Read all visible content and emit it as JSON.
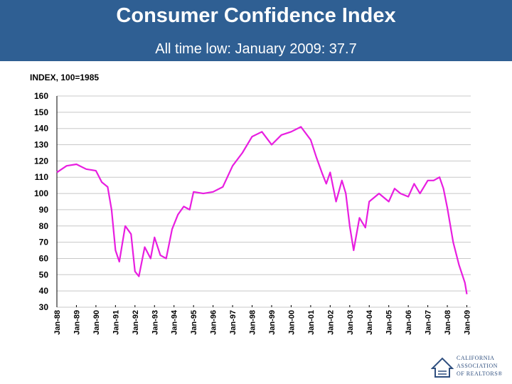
{
  "header": {
    "title": "Consumer Confidence Index",
    "subtitle": "All time low: January 2009: 37.7"
  },
  "colors": {
    "header_bg": "#2f5f93",
    "series_line": "#e81ee0",
    "gridline": "#c8c8c8"
  },
  "logo": {
    "lines": [
      "CALIFORNIA",
      "ASSOCIATION",
      "OF REALTORS®"
    ],
    "icon": "realtors-logo-icon"
  },
  "chart_data": {
    "type": "line",
    "title": "Consumer Confidence Index",
    "subtitle": "All time low: January 2009: 37.7",
    "ylabel": "INDEX, 100=1985",
    "xlabel": "",
    "ylim": [
      30,
      160
    ],
    "yticks": [
      30,
      40,
      50,
      60,
      70,
      80,
      90,
      100,
      110,
      120,
      130,
      140,
      150,
      160
    ],
    "xticks": [
      "Jan-88",
      "Jan-89",
      "Jan-90",
      "Jan-91",
      "Jan-92",
      "Jan-93",
      "Jan-94",
      "Jan-95",
      "Jan-96",
      "Jan-97",
      "Jan-98",
      "Jan-99",
      "Jan-00",
      "Jan-01",
      "Jan-02",
      "Jan-03",
      "Jan-04",
      "Jan-05",
      "Jan-06",
      "Jan-07",
      "Jan-08",
      "Jan-09"
    ],
    "grid": true,
    "legend": "none",
    "series": [
      {
        "x": [
          1988.0,
          1988.5,
          1989.0,
          1989.5,
          1990.0,
          1990.3,
          1990.6,
          1990.8,
          1991.0,
          1991.2,
          1991.5,
          1991.8,
          1992.0,
          1992.2,
          1992.5,
          1992.8,
          1993.0,
          1993.3,
          1993.6,
          1993.9,
          1994.2,
          1994.5,
          1994.8,
          1995.0,
          1995.5,
          1996.0,
          1996.5,
          1997.0,
          1997.5,
          1998.0,
          1998.5,
          1999.0,
          1999.5,
          2000.0,
          2000.5,
          2001.0,
          2001.3,
          2001.6,
          2001.8,
          2002.0,
          2002.3,
          2002.6,
          2002.8,
          2003.0,
          2003.2,
          2003.5,
          2003.8,
          2004.0,
          2004.5,
          2005.0,
          2005.3,
          2005.6,
          2006.0,
          2006.3,
          2006.6,
          2007.0,
          2007.3,
          2007.6,
          2007.8,
          2008.0,
          2008.3,
          2008.6,
          2008.9,
          2009.0
        ],
        "values": [
          113,
          117,
          118,
          115,
          114,
          107,
          104,
          90,
          65,
          58,
          80,
          75,
          52,
          49,
          67,
          60,
          73,
          62,
          60,
          78,
          87,
          92,
          90,
          101,
          100,
          101,
          104,
          117,
          125,
          135,
          138,
          130,
          136,
          138,
          141,
          133,
          122,
          112,
          106,
          113,
          95,
          108,
          100,
          80,
          65,
          85,
          79,
          95,
          100,
          95,
          103,
          100,
          98,
          106,
          100,
          108,
          108,
          110,
          103,
          91,
          70,
          56,
          45,
          38
        ]
      }
    ]
  }
}
